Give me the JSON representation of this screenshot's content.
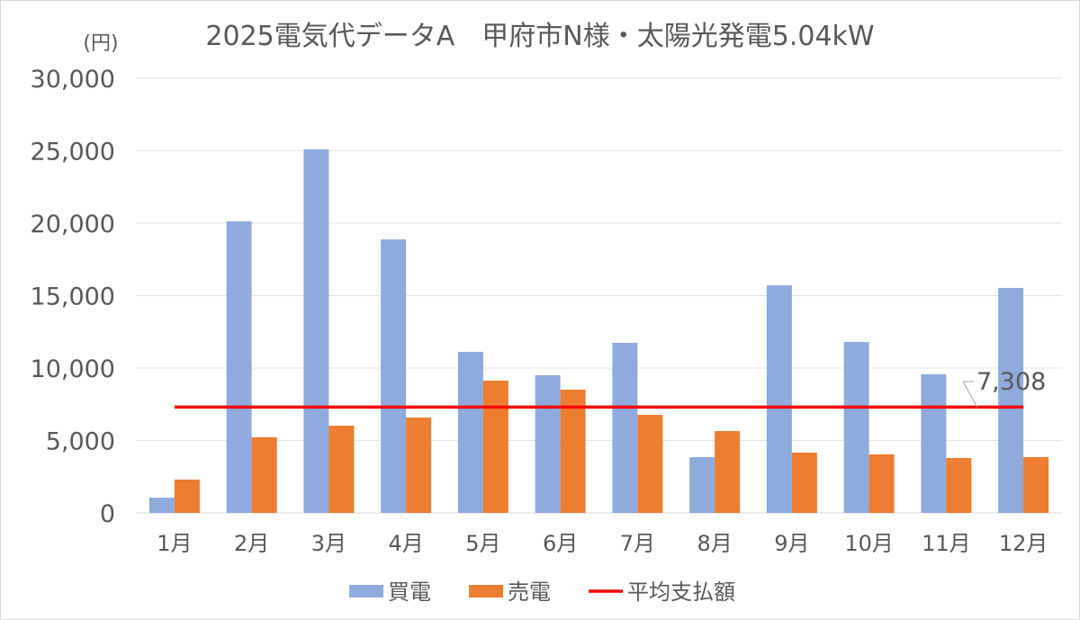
{
  "chart_data": {
    "type": "bar",
    "title": "2025電気代データA　甲府市N様・太陽光発電5.04kW",
    "ylabel": "(円)",
    "xlabel": "",
    "ylim": [
      0,
      30000
    ],
    "yticks": [
      "0",
      "5,000",
      "10,000",
      "15,000",
      "20,000",
      "25,000",
      "30,000"
    ],
    "grid": true,
    "legend_position": "bottom",
    "categories": [
      "1月",
      "2月",
      "3月",
      "4月",
      "5月",
      "6月",
      "7月",
      "8月",
      "9月",
      "10月",
      "11月",
      "12月"
    ],
    "series": [
      {
        "name": "買電",
        "type": "bar",
        "color": "#8faadc",
        "values": [
          1050,
          20120,
          25090,
          18880,
          11120,
          9500,
          11740,
          3850,
          15710,
          11800,
          9570,
          15530
        ]
      },
      {
        "name": "売電",
        "type": "bar",
        "color": "#ed7d31",
        "values": [
          2300,
          5220,
          6020,
          6580,
          9130,
          8510,
          6770,
          5650,
          4160,
          4040,
          3790,
          3850
        ]
      },
      {
        "name": "平均支払額",
        "type": "line",
        "color": "#ff0000",
        "value": 7308,
        "data_label": "7,308"
      }
    ]
  }
}
